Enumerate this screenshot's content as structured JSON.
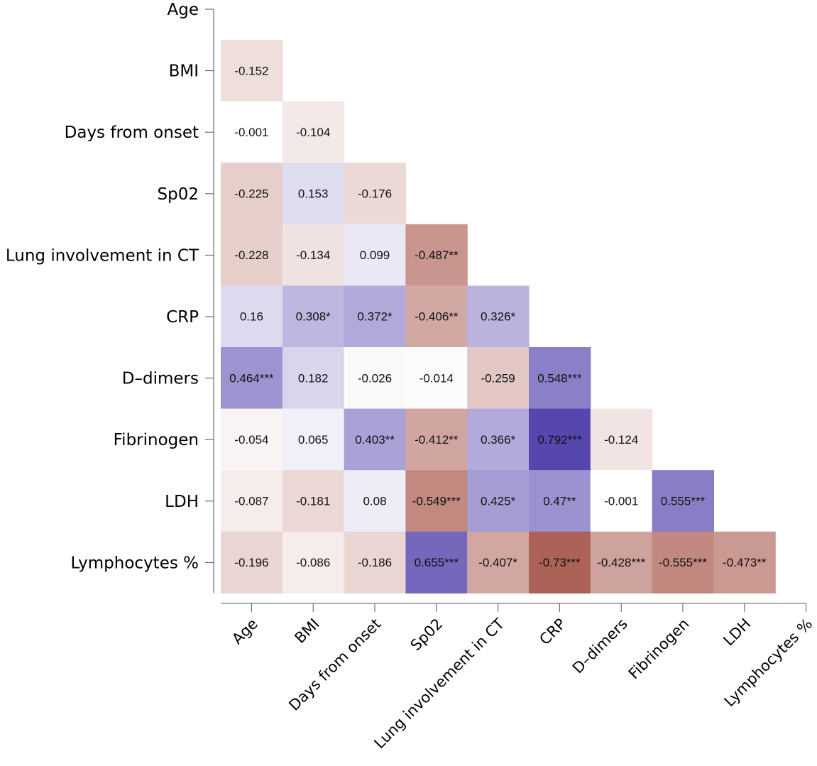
{
  "chart_data": {
    "type": "heatmap",
    "subtype": "lower-triangular correlation matrix",
    "variables": [
      "Age",
      "BMI",
      "Days from onset",
      "Sp02",
      "Lung involvement in CT",
      "CRP",
      "D–dimers",
      "Fibrinogen",
      "LDH",
      "Lymphocytes %"
    ],
    "value_range": [
      -1,
      1
    ],
    "colors": {
      "negative": "#a0483c",
      "zero": "#ffffff",
      "positive": "#4a3aa8"
    },
    "cells": [
      {
        "row": 1,
        "col": 0,
        "value": -0.152,
        "label": "-0.152"
      },
      {
        "row": 2,
        "col": 0,
        "value": -0.001,
        "label": "-0.001"
      },
      {
        "row": 2,
        "col": 1,
        "value": -0.104,
        "label": "-0.104"
      },
      {
        "row": 3,
        "col": 0,
        "value": -0.225,
        "label": "-0.225"
      },
      {
        "row": 3,
        "col": 1,
        "value": 0.153,
        "label": "0.153"
      },
      {
        "row": 3,
        "col": 2,
        "value": -0.176,
        "label": "-0.176"
      },
      {
        "row": 4,
        "col": 0,
        "value": -0.228,
        "label": "-0.228"
      },
      {
        "row": 4,
        "col": 1,
        "value": -0.134,
        "label": "-0.134"
      },
      {
        "row": 4,
        "col": 2,
        "value": 0.099,
        "label": "0.099"
      },
      {
        "row": 4,
        "col": 3,
        "value": -0.487,
        "label": "-0.487**"
      },
      {
        "row": 5,
        "col": 0,
        "value": 0.16,
        "label": "0.16"
      },
      {
        "row": 5,
        "col": 1,
        "value": 0.308,
        "label": "0.308*"
      },
      {
        "row": 5,
        "col": 2,
        "value": 0.372,
        "label": "0.372*"
      },
      {
        "row": 5,
        "col": 3,
        "value": -0.406,
        "label": "-0.406**"
      },
      {
        "row": 5,
        "col": 4,
        "value": 0.326,
        "label": "0.326*"
      },
      {
        "row": 6,
        "col": 0,
        "value": 0.464,
        "label": "0.464***"
      },
      {
        "row": 6,
        "col": 1,
        "value": 0.182,
        "label": "0.182"
      },
      {
        "row": 6,
        "col": 2,
        "value": -0.026,
        "label": "-0.026"
      },
      {
        "row": 6,
        "col": 3,
        "value": -0.014,
        "label": "-0.014"
      },
      {
        "row": 6,
        "col": 4,
        "value": -0.259,
        "label": "-0.259"
      },
      {
        "row": 6,
        "col": 5,
        "value": 0.548,
        "label": "0.548***"
      },
      {
        "row": 7,
        "col": 0,
        "value": -0.054,
        "label": "-0.054"
      },
      {
        "row": 7,
        "col": 1,
        "value": 0.065,
        "label": "0.065"
      },
      {
        "row": 7,
        "col": 2,
        "value": 0.403,
        "label": "0.403**"
      },
      {
        "row": 7,
        "col": 3,
        "value": -0.412,
        "label": "-0.412**"
      },
      {
        "row": 7,
        "col": 4,
        "value": 0.366,
        "label": "0.366*"
      },
      {
        "row": 7,
        "col": 5,
        "value": 0.792,
        "label": "0.792***"
      },
      {
        "row": 7,
        "col": 6,
        "value": -0.124,
        "label": "-0.124"
      },
      {
        "row": 8,
        "col": 0,
        "value": -0.087,
        "label": "-0.087"
      },
      {
        "row": 8,
        "col": 1,
        "value": -0.181,
        "label": "-0.181"
      },
      {
        "row": 8,
        "col": 2,
        "value": 0.08,
        "label": "0.08"
      },
      {
        "row": 8,
        "col": 3,
        "value": -0.549,
        "label": "-0.549***"
      },
      {
        "row": 8,
        "col": 4,
        "value": 0.425,
        "label": "0.425*"
      },
      {
        "row": 8,
        "col": 5,
        "value": 0.47,
        "label": "0.47**"
      },
      {
        "row": 8,
        "col": 6,
        "value": -0.001,
        "label": "-0.001"
      },
      {
        "row": 8,
        "col": 7,
        "value": 0.555,
        "label": "0.555***"
      },
      {
        "row": 9,
        "col": 0,
        "value": -0.196,
        "label": "-0.196"
      },
      {
        "row": 9,
        "col": 1,
        "value": -0.086,
        "label": "-0.086"
      },
      {
        "row": 9,
        "col": 2,
        "value": -0.186,
        "label": "-0.186"
      },
      {
        "row": 9,
        "col": 3,
        "value": 0.655,
        "label": "0.655***"
      },
      {
        "row": 9,
        "col": 4,
        "value": -0.407,
        "label": "-0.407*"
      },
      {
        "row": 9,
        "col": 5,
        "value": -0.73,
        "label": "-0.73***"
      },
      {
        "row": 9,
        "col": 6,
        "value": -0.428,
        "label": "-0.428***"
      },
      {
        "row": 9,
        "col": 7,
        "value": -0.555,
        "label": "-0.555***"
      },
      {
        "row": 9,
        "col": 8,
        "value": -0.473,
        "label": "-0.473**"
      }
    ]
  }
}
